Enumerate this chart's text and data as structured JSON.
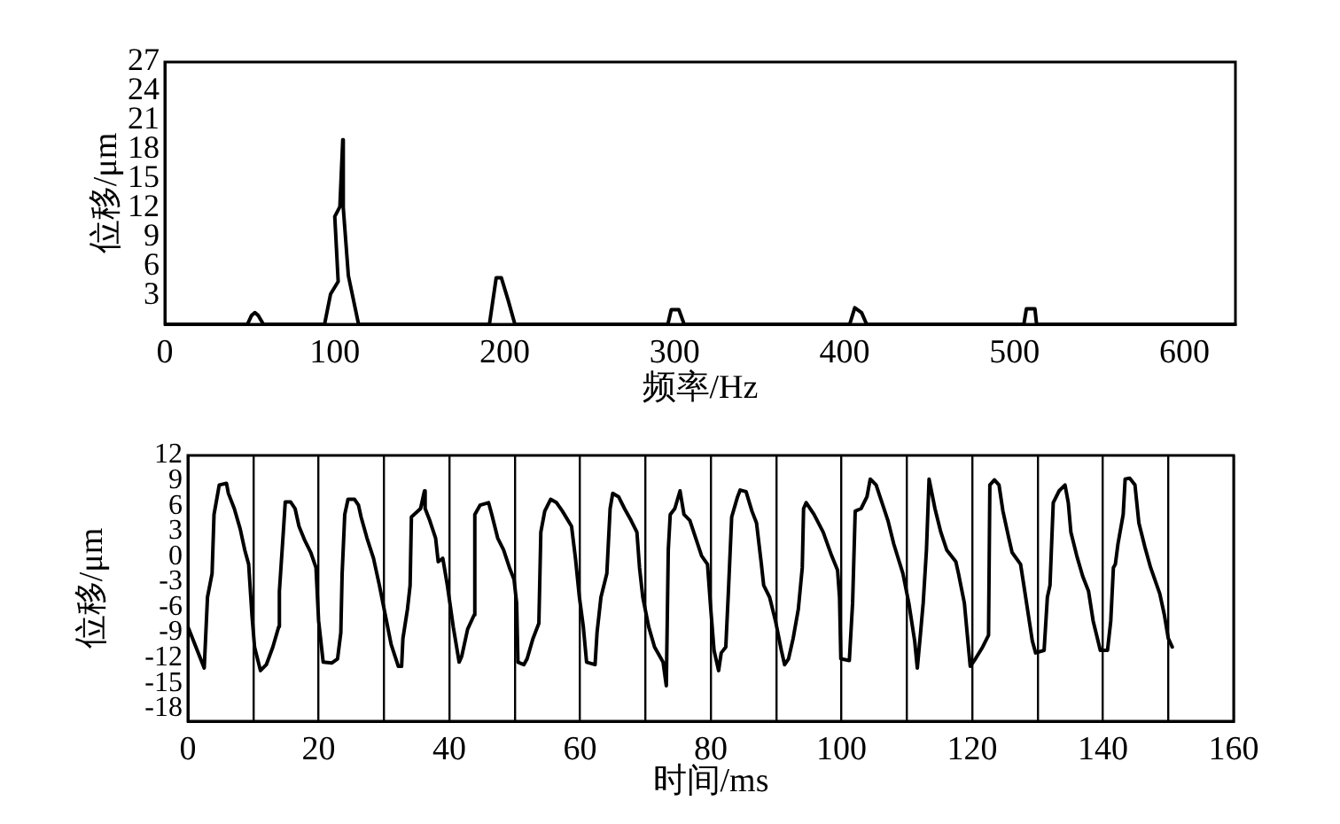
{
  "chart_data": [
    {
      "type": "line",
      "xlabel": "频率/Hz",
      "ylabel": "位移/μm",
      "xlim": [
        0,
        630
      ],
      "xticks": [
        0,
        100,
        200,
        300,
        400,
        500,
        600
      ],
      "ylim": [
        0,
        27
      ],
      "yticks": [
        3,
        6,
        9,
        12,
        15,
        18,
        21,
        24,
        27
      ],
      "series": [
        {
          "color": "#000000",
          "x": [
            0,
            48.6,
            51,
            53,
            55,
            58,
            94,
            97.5,
            102,
            100,
            103,
            104.7,
            105,
            108,
            114,
            191,
            195,
            198,
            202,
            206,
            296,
            298,
            302.5,
            305.6,
            403,
            406,
            410,
            413,
            505.5,
            507,
            512,
            513,
            630
          ],
          "values": [
            0,
            0,
            0.9,
            1.2,
            0.9,
            0,
            0,
            3.1,
            4.4,
            11.1,
            12.1,
            19,
            12,
            5,
            0,
            0,
            4.8,
            4.8,
            2.5,
            0,
            0,
            1.5,
            1.5,
            0,
            0,
            1.7,
            1.2,
            0,
            0,
            1.6,
            1.6,
            0,
            0
          ]
        }
      ]
    },
    {
      "type": "line",
      "xlabel": "时间/ms",
      "ylabel": "位移/μm",
      "xlim": [
        0,
        160
      ],
      "xticks": [
        0,
        {
          "value": 10,
          "label": null
        },
        20,
        {
          "value": 30,
          "label": null
        },
        40,
        {
          "value": 50,
          "label": null
        },
        60,
        {
          "value": 70,
          "label": null
        },
        80,
        {
          "value": 90,
          "label": null
        },
        100,
        {
          "value": 110,
          "label": null
        },
        120,
        {
          "value": 130,
          "label": null
        },
        140,
        {
          "value": 150,
          "label": null
        },
        160
      ],
      "ylim": [
        -19.5,
        12
      ],
      "yticks": [
        -18,
        -15,
        -12,
        -9,
        -6,
        -3,
        0,
        3,
        6,
        9,
        12
      ],
      "grid": "x",
      "series": [
        {
          "color": "#000000",
          "x": [
            0,
            2.5,
            3.0,
            3.7,
            4.0,
            4.8,
            5.9,
            6.2,
            7.1,
            8.0,
            8.7,
            9.3,
            9.8,
            10.2,
            11.1,
            12.0,
            13.0,
            13.9,
            14.0,
            14.6,
            14.9,
            15.7,
            16.4,
            17.0,
            17.9,
            18.8,
            19.6,
            20.0,
            20.7,
            22.0,
            22.9,
            23.4,
            23.6,
            24.0,
            24.5,
            25.5,
            26.1,
            26.5,
            27.4,
            28.4,
            29.3,
            30.2,
            31.1,
            32.2,
            32.7,
            32.9,
            33.6,
            34.0,
            34.2,
            35.6,
            36.2,
            36.3,
            37.0,
            37.9,
            38.3,
            39.0,
            39.7,
            40.6,
            41.5,
            41.9,
            42.8,
            43.8,
            43.9,
            44.7,
            46.0,
            46.5,
            47.4,
            48.3,
            49.2,
            49.9,
            50.3,
            50.5,
            51.4,
            51.9,
            52.8,
            53.7,
            54.0,
            54.6,
            55.5,
            56.4,
            57.3,
            58.7,
            59.3,
            59.9,
            60.5,
            61.0,
            62.3,
            62.6,
            63.2,
            64.1,
            64.6,
            65.0,
            65.9,
            66.8,
            67.8,
            68.7,
            69.1,
            69.6,
            70.5,
            71.4,
            72.7,
            73.2,
            73.5,
            73.8,
            74.5,
            75.3,
            75.9,
            76.8,
            77.7,
            78.6,
            79.5,
            80.0,
            80.5,
            81.2,
            81.6,
            82.3,
            82.7,
            83.2,
            84.1,
            84.5,
            85.4,
            86.3,
            87.0,
            87.7,
            88.1,
            89.0,
            89.9,
            90.8,
            91.3,
            91.9,
            92.6,
            93.4,
            94.0,
            94.2,
            94.6,
            95.8,
            97.2,
            98.5,
            99.4,
            99.7,
            99.9,
            101.2,
            101.7,
            102.1,
            103.0,
            103.9,
            104.4,
            105.3,
            106.2,
            107.1,
            108.0,
            109.4,
            110.3,
            111.2,
            111.6,
            112.1,
            112.5,
            113.0,
            113.4,
            114.3,
            115.2,
            116.1,
            117.5,
            117.9,
            118.8,
            119.7,
            120.5,
            121.6,
            122.5,
            122.7,
            123.4,
            124.1,
            124.7,
            125.6,
            126.1,
            127.4,
            127.9,
            129.2,
            129.7,
            131.0,
            131.5,
            131.9,
            132.4,
            133.3,
            134.2,
            134.7,
            135.1,
            136.0,
            136.9,
            137.8,
            138.5,
            139.6,
            140.7,
            141.2,
            141.6,
            141.9,
            142.3,
            143.1,
            143.4,
            144.1,
            144.9,
            145.5,
            146.4,
            147.3,
            148.7,
            149.4,
            150.0,
            150.6
          ],
          "values": [
            -8.3,
            -13.2,
            -4.8,
            -2.0,
            5.0,
            8.5,
            8.7,
            7.5,
            5.7,
            3.3,
            0.8,
            -0.9,
            -6.9,
            -10.7,
            -13.5,
            -12.8,
            -10.7,
            -8.3,
            -4.1,
            2.9,
            6.5,
            6.5,
            5.7,
            3.6,
            1.9,
            0.5,
            -1.3,
            -7.6,
            -12.5,
            -12.6,
            -12.1,
            -9.0,
            -2.0,
            5.0,
            6.8,
            6.8,
            6.1,
            4.7,
            2.2,
            -0.2,
            -3.4,
            -6.9,
            -10.4,
            -13.0,
            -13.0,
            -9.7,
            -6.2,
            -3.4,
            4.7,
            5.7,
            7.8,
            5.7,
            4.3,
            2.2,
            -0.6,
            -0.2,
            -3.4,
            -8.3,
            -12.5,
            -11.8,
            -8.6,
            -6.9,
            5.0,
            6.1,
            6.4,
            5.0,
            2.2,
            0.8,
            -1.3,
            -2.7,
            -5.5,
            -12.5,
            -12.8,
            -12.1,
            -9.7,
            -7.9,
            2.9,
            5.4,
            6.8,
            6.4,
            5.4,
            3.6,
            -0.2,
            -4.8,
            -8.3,
            -12.5,
            -12.8,
            -9.0,
            -4.8,
            -2.0,
            5.7,
            7.5,
            7.1,
            5.7,
            4.3,
            2.9,
            -1.3,
            -4.8,
            -8.3,
            -10.7,
            -12.5,
            -15.3,
            0.8,
            5.0,
            5.7,
            7.8,
            5.0,
            4.3,
            2.2,
            0.1,
            -0.9,
            -6.2,
            -11.1,
            -13.5,
            -11.4,
            -10.7,
            -4.1,
            4.7,
            7.1,
            7.9,
            7.7,
            5.4,
            4.0,
            -0.6,
            -3.4,
            -4.8,
            -7.6,
            -11.1,
            -12.8,
            -12.1,
            -9.7,
            -6.2,
            -1.3,
            5.7,
            6.4,
            5.0,
            2.9,
            0.1,
            -1.6,
            -4.8,
            -12.1,
            -12.3,
            -5.5,
            5.4,
            5.7,
            7.1,
            9.2,
            8.5,
            6.4,
            4.3,
            1.5,
            -2.0,
            -5.5,
            -10.0,
            -13.2,
            -9.0,
            -5.5,
            0.8,
            9.2,
            5.7,
            2.9,
            0.8,
            -0.6,
            -2.0,
            -5.5,
            -13.0,
            -12.1,
            -10.7,
            -9.3,
            8.5,
            9.1,
            8.5,
            5.4,
            2.2,
            0.5,
            -0.9,
            -3.4,
            -10.0,
            -11.4,
            -11.1,
            -4.8,
            -3.4,
            6.4,
            7.8,
            8.5,
            6.4,
            2.9,
            0.1,
            -2.3,
            -4.1,
            -7.6,
            -11.1,
            -11.1,
            -7.6,
            -1.3,
            -0.9,
            1.5,
            5.0,
            9.2,
            9.3,
            8.5,
            4.0,
            1.2,
            -1.3,
            -4.4,
            -6.9,
            -9.7,
            -10.7
          ]
        }
      ]
    }
  ]
}
